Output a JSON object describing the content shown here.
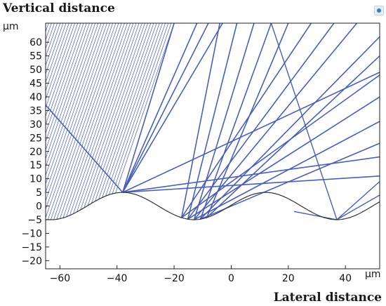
{
  "chart_data": {
    "type": "line",
    "title": "",
    "ylabel": "Vertical distance",
    "yunit": "µm",
    "xlabel": "Lateral distance",
    "xunit": "µm",
    "xlim": [
      -65,
      52
    ],
    "ylim": [
      -23,
      67
    ],
    "xticks": [
      -60,
      -40,
      -20,
      0,
      20,
      40
    ],
    "yticks": [
      -20,
      -15,
      -10,
      -5,
      0,
      5,
      10,
      15,
      20,
      25,
      30,
      35,
      40,
      45,
      50,
      55,
      60
    ],
    "grid": false,
    "surface": {
      "name": "",
      "color": "#333333",
      "formula": "y = 5*cos(2*pi*(x+38)/50) for -63 <= x <= 50, y = -5 for x < -63",
      "amplitude": 5,
      "period": 50,
      "peaks_x": [
        -38,
        12
      ],
      "valleys_x": [
        -13,
        37
      ]
    },
    "incident_rays": {
      "color": "#4a5fb5",
      "x_at_top_from": -65,
      "x_at_top_to": -20,
      "count": 45,
      "slope_dx_per_dy": 0.33
    },
    "reflected_rays": {
      "color": "#4a5fb5",
      "from_peak": [
        [
          -65,
          37
        ],
        [
          -20,
          67
        ],
        [
          -12,
          67
        ],
        [
          -8,
          67
        ],
        [
          -3,
          67
        ],
        [
          52,
          49
        ],
        [
          52,
          18
        ],
        [
          52,
          11
        ]
      ],
      "from_valley": [
        [
          -4,
          67
        ],
        [
          2,
          67
        ],
        [
          8,
          67
        ],
        [
          14,
          67
        ],
        [
          20,
          67
        ],
        [
          28,
          67
        ],
        [
          36,
          67
        ],
        [
          44,
          67
        ],
        [
          52,
          62
        ],
        [
          52,
          55
        ],
        [
          52,
          48
        ],
        [
          52,
          40
        ],
        [
          52,
          31
        ],
        [
          52,
          23
        ]
      ]
    }
  },
  "ui": {
    "corner_icon": "comsol-logo-icon"
  }
}
